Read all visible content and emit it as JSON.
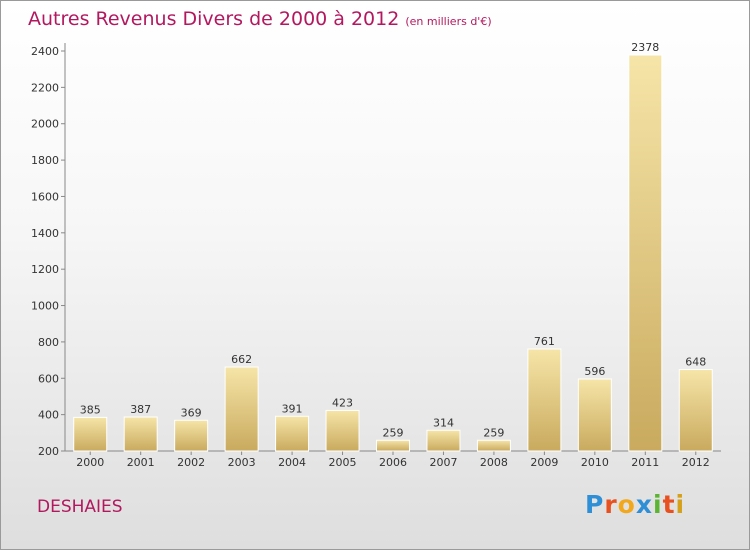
{
  "title": "Autres Revenus Divers de 2000 à 2012",
  "subtitle": "(en milliers d'€)",
  "commune": "DESHAIES",
  "logo_letters": [
    "P",
    "r",
    "o",
    "x",
    "i",
    "t",
    "i"
  ],
  "colors": {
    "title": "#b3185f",
    "bar_light": "#f4e1a3",
    "bar_dark": "#cfb164",
    "axis": "#888888"
  },
  "chart_data": {
    "type": "bar",
    "title": "Autres Revenus Divers de 2000 à 2012",
    "subtitle": "(en milliers d'€)",
    "categories": [
      "2000",
      "2001",
      "2002",
      "2003",
      "2004",
      "2005",
      "2006",
      "2007",
      "2008",
      "2009",
      "2010",
      "2011",
      "2012"
    ],
    "values": [
      385,
      387,
      369,
      662,
      391,
      423,
      259,
      314,
      259,
      761,
      596,
      2378,
      648
    ],
    "ylim": [
      200,
      2400
    ],
    "yticks": [
      200,
      400,
      600,
      800,
      1000,
      1200,
      1400,
      1600,
      1800,
      2000,
      2200,
      2400
    ],
    "grid": false,
    "xlabel": "",
    "ylabel": ""
  }
}
